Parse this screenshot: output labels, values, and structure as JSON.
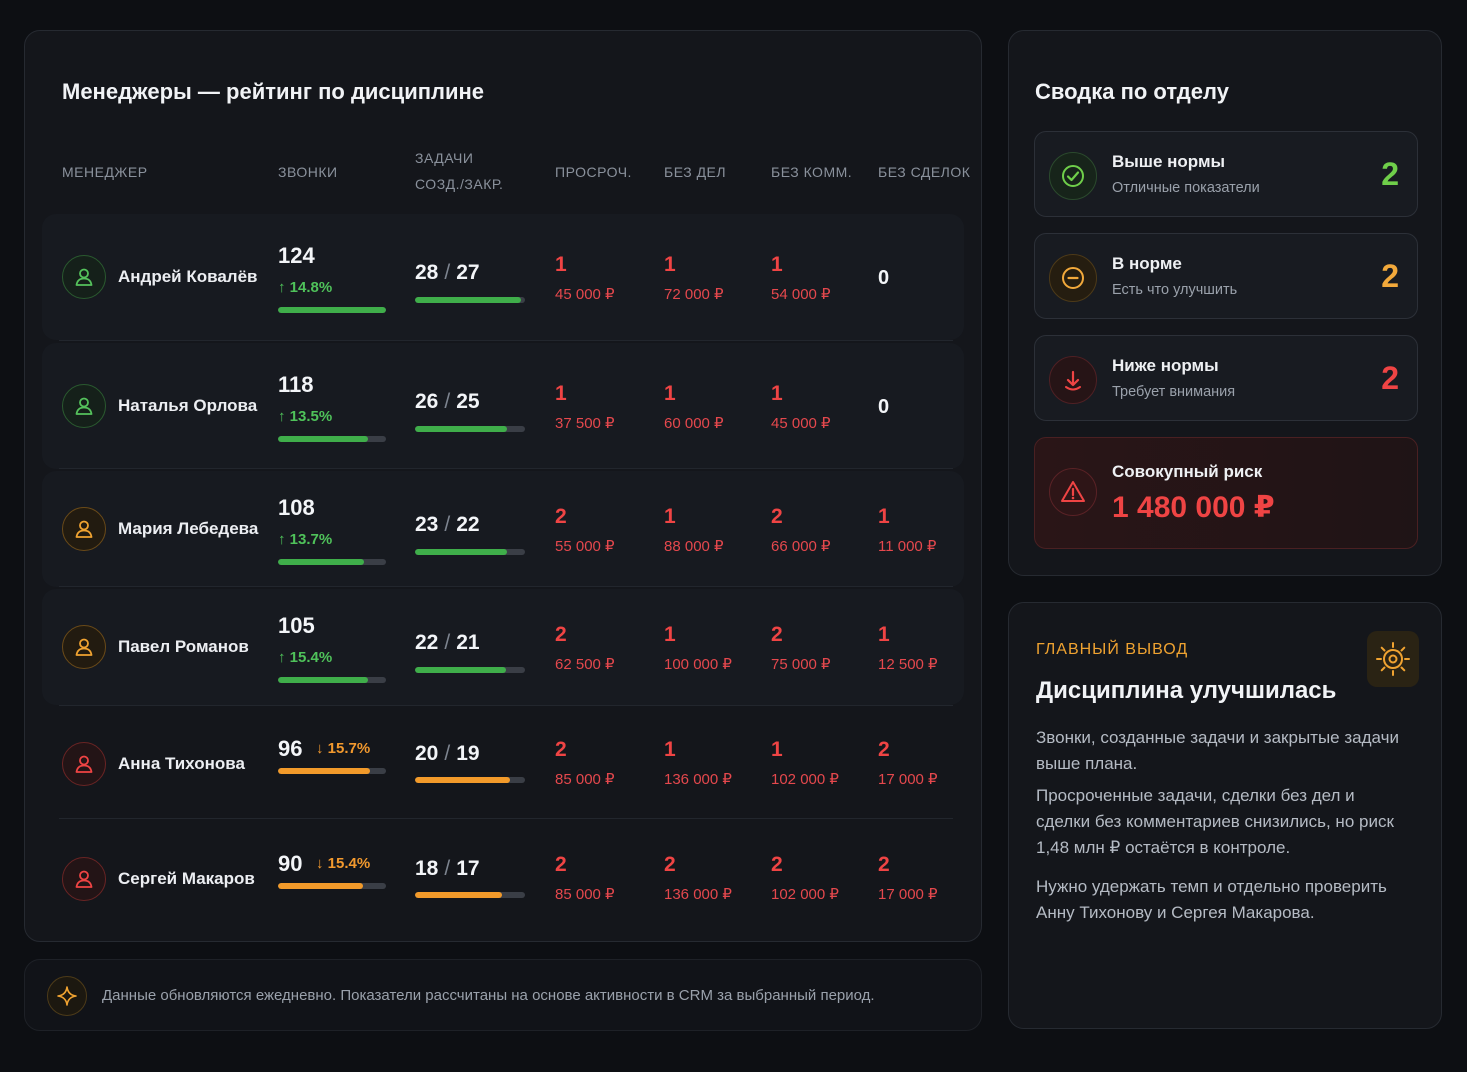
{
  "main": {
    "title": "Менеджеры — рейтинг по дисциплине",
    "columns": {
      "manager": "МЕНЕДЖЕР",
      "calls": "ЗВОНКИ",
      "tasks_line1": "ЗАДАЧИ",
      "tasks_line2": "СОЗД./ЗАКР.",
      "overdue": "ПРОСРОЧ.",
      "no_activity": "БЕЗ ДЕЛ",
      "no_comments": "БЕЗ КОММ.",
      "no_deals": "БЕЗ СДЕЛОК"
    },
    "rows": [
      {
        "name": "Андрей Ковалёв",
        "calls": "124",
        "delta": "↑ 14.8%",
        "delta_dir": "up",
        "calls_progress": 1.0,
        "tasks_created": "28",
        "tasks_closed": "27",
        "tasks_progress": 0.96,
        "overdue_count": "1",
        "overdue_sum": "45 000 ₽",
        "noact_count": "1",
        "noact_sum": "72 000 ₽",
        "nocomm_count": "1",
        "nocomm_sum": "54 000 ₽",
        "nodeals_count": "0",
        "nodeals_sum": "",
        "status": "green"
      },
      {
        "name": "Наталья Орлова",
        "calls": "118",
        "delta": "↑ 13.5%",
        "delta_dir": "up",
        "calls_progress": 0.83,
        "tasks_created": "26",
        "tasks_closed": "25",
        "tasks_progress": 0.84,
        "overdue_count": "1",
        "overdue_sum": "37 500 ₽",
        "noact_count": "1",
        "noact_sum": "60 000 ₽",
        "nocomm_count": "1",
        "nocomm_sum": "45 000 ₽",
        "nodeals_count": "0",
        "nodeals_sum": "",
        "status": "green"
      },
      {
        "name": "Мария Лебедева",
        "calls": "108",
        "delta": "↑ 13.7%",
        "delta_dir": "up",
        "calls_progress": 0.8,
        "tasks_created": "23",
        "tasks_closed": "22",
        "tasks_progress": 0.84,
        "overdue_count": "2",
        "overdue_sum": "55 000 ₽",
        "noact_count": "1",
        "noact_sum": "88 000 ₽",
        "nocomm_count": "2",
        "nocomm_sum": "66 000 ₽",
        "nodeals_count": "1",
        "nodeals_sum": "11 000 ₽",
        "status": "amber"
      },
      {
        "name": "Павел Романов",
        "calls": "105",
        "delta": "↑ 15.4%",
        "delta_dir": "up",
        "calls_progress": 0.83,
        "tasks_created": "22",
        "tasks_closed": "21",
        "tasks_progress": 0.83,
        "overdue_count": "2",
        "overdue_sum": "62 500 ₽",
        "noact_count": "1",
        "noact_sum": "100 000 ₽",
        "nocomm_count": "2",
        "nocomm_sum": "75 000 ₽",
        "nodeals_count": "1",
        "nodeals_sum": "12 500 ₽",
        "status": "amber"
      },
      {
        "name": "Анна Тихонова",
        "calls": "96",
        "delta": "↓ 15.7%",
        "delta_dir": "down",
        "calls_progress": 0.85,
        "tasks_created": "20",
        "tasks_closed": "19",
        "tasks_progress": 0.86,
        "overdue_count": "2",
        "overdue_sum": "85 000 ₽",
        "noact_count": "1",
        "noact_sum": "136 000 ₽",
        "nocomm_count": "1",
        "nocomm_sum": "102 000 ₽",
        "nodeals_count": "2",
        "nodeals_sum": "17 000 ₽",
        "status": "red"
      },
      {
        "name": "Сергей Макаров",
        "calls": "90",
        "delta": "↓ 15.4%",
        "delta_dir": "down",
        "calls_progress": 0.79,
        "tasks_created": "18",
        "tasks_closed": "17",
        "tasks_progress": 0.79,
        "overdue_count": "2",
        "overdue_sum": "85 000 ₽",
        "noact_count": "2",
        "noact_sum": "136 000 ₽",
        "nocomm_count": "2",
        "nocomm_sum": "102 000 ₽",
        "nodeals_count": "2",
        "nodeals_sum": "17 000 ₽",
        "status": "red"
      }
    ]
  },
  "summary": {
    "title": "Сводка по отделу",
    "above": {
      "title": "Выше нормы",
      "subtitle": "Отличные показатели",
      "count": "2",
      "color": "#6fcf4a",
      "icon": "check-circle-icon"
    },
    "normal": {
      "title": "В норме",
      "subtitle": "Есть что улучшить",
      "count": "2",
      "color": "#f2a93b",
      "icon": "minus-circle-icon"
    },
    "below": {
      "title": "Ниже нормы",
      "subtitle": "Требует внимания",
      "count": "2",
      "color": "#ef4444",
      "icon": "arrow-down-icon"
    },
    "risk": {
      "title": "Совокупный риск",
      "value": "1 480 000 ₽",
      "color": "#ef4444",
      "icon": "warning-icon"
    }
  },
  "conclusion": {
    "kicker": "ГЛАВНЫЙ ВЫВОД",
    "title": "Дисциплина улучшилась",
    "p1": "Звонки, созданные задачи и закрытые задачи выше плана.",
    "p2": "Просроченные задачи, сделки без дел и сделки без комментариев снизились, но риск 1,48 млн ₽ остаётся в контроле.",
    "p3": "Нужно удержать темп и отдельно проверить Анну Тихонову и Сергея Макарова.",
    "icon": "sun-target-icon"
  },
  "footer": {
    "text": "Данные обновляются ежедневно. Показатели рассчитаны на основе активности в CRM за выбранный период.",
    "icon": "sparkle-icon"
  }
}
